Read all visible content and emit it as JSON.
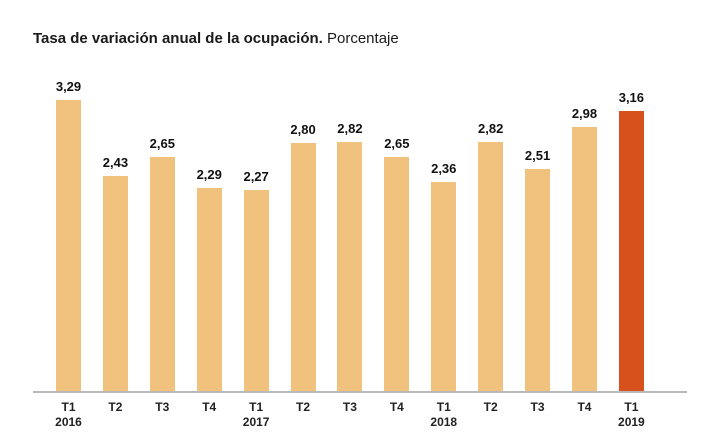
{
  "title": {
    "bold": "Tasa de variación anual de la ocupación.",
    "regular": " Porcentaje"
  },
  "chart_data": {
    "type": "bar",
    "title": "Tasa de variación anual de la ocupación. Porcentaje",
    "xlabel": "",
    "ylabel": "",
    "ylim": [
      0,
      3.29
    ],
    "grid": false,
    "legend": false,
    "categories": [
      {
        "quarter": "T1",
        "year": "2016"
      },
      {
        "quarter": "T2",
        "year": ""
      },
      {
        "quarter": "T3",
        "year": ""
      },
      {
        "quarter": "T4",
        "year": ""
      },
      {
        "quarter": "T1",
        "year": "2017"
      },
      {
        "quarter": "T2",
        "year": ""
      },
      {
        "quarter": "T3",
        "year": ""
      },
      {
        "quarter": "T4",
        "year": ""
      },
      {
        "quarter": "T1",
        "year": "2018"
      },
      {
        "quarter": "T2",
        "year": ""
      },
      {
        "quarter": "T3",
        "year": ""
      },
      {
        "quarter": "T4",
        "year": ""
      },
      {
        "quarter": "T1",
        "year": "2019"
      }
    ],
    "values": [
      3.29,
      2.43,
      2.65,
      2.29,
      2.27,
      2.8,
      2.82,
      2.65,
      2.36,
      2.82,
      2.51,
      2.98,
      3.16
    ],
    "value_labels": [
      "3,29",
      "2,43",
      "2,65",
      "2,29",
      "2,27",
      "2,80",
      "2,82",
      "2,65",
      "2,36",
      "2,82",
      "2,51",
      "2,98",
      "3,16"
    ],
    "highlight_index": 12,
    "colors": {
      "bar": "#F1C17E",
      "highlight": "#D6511C",
      "axis_line": "#B9B9B9",
      "label_text": "#111111",
      "tick_text": "#222222"
    }
  }
}
